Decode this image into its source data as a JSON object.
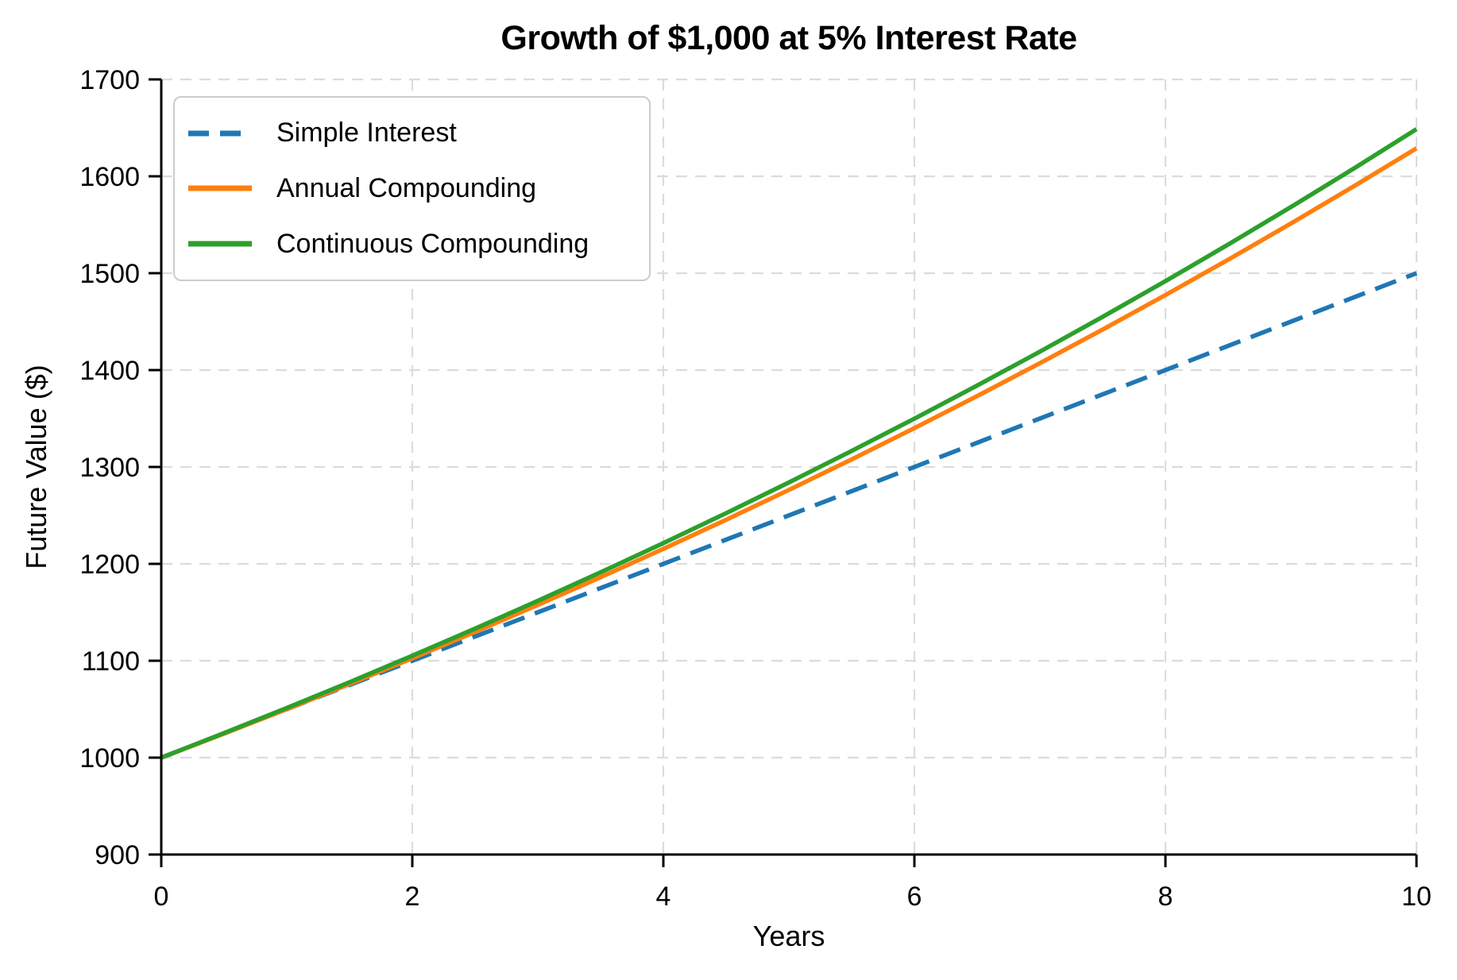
{
  "figure": {
    "background": "#ffffff"
  },
  "chart_data": {
    "type": "line",
    "title": "Growth of $1,000 at 5% Interest Rate",
    "xlabel": "Years",
    "ylabel": "Future Value ($)",
    "xlim": [
      0,
      10
    ],
    "ylim": [
      900,
      1700
    ],
    "x_ticks": [
      0,
      2,
      4,
      6,
      8,
      10
    ],
    "y_ticks": [
      900,
      1000,
      1100,
      1200,
      1300,
      1400,
      1500,
      1600,
      1700
    ],
    "grid": true,
    "legend_position": "upper-left",
    "x": [
      0,
      0.5,
      1,
      1.5,
      2,
      2.5,
      3,
      3.5,
      4,
      4.5,
      5,
      5.5,
      6,
      6.5,
      7,
      7.5,
      8,
      8.5,
      9,
      9.5,
      10
    ],
    "series": [
      {
        "name": "Simple Interest",
        "color": "#1f77b4",
        "style": "dashed",
        "values": [
          1000,
          1025,
          1050,
          1075,
          1100,
          1125,
          1150,
          1175,
          1200,
          1225,
          1250,
          1275,
          1300,
          1325,
          1350,
          1375,
          1400,
          1425,
          1450,
          1475,
          1500
        ]
      },
      {
        "name": "Annual Compounding",
        "color": "#ff7f0e",
        "style": "solid",
        "values": [
          1000,
          1024.7,
          1050.0,
          1075.93,
          1102.5,
          1129.73,
          1157.63,
          1186.21,
          1215.51,
          1245.52,
          1276.28,
          1307.8,
          1340.1,
          1373.19,
          1407.1,
          1441.85,
          1477.46,
          1513.94,
          1551.33,
          1589.64,
          1628.89
        ]
      },
      {
        "name": "Continuous Compounding",
        "color": "#2ca02c",
        "style": "solid",
        "values": [
          1000,
          1025.32,
          1051.27,
          1077.88,
          1105.17,
          1133.15,
          1161.83,
          1191.25,
          1221.4,
          1252.32,
          1284.03,
          1316.53,
          1349.86,
          1384.03,
          1419.07,
          1454.99,
          1491.82,
          1529.59,
          1568.31,
          1608.01,
          1648.72
        ]
      }
    ]
  },
  "style": {
    "grid_color": "#dcdcdc",
    "spine_color": "#000000",
    "text_color": "#000000",
    "legend_border_color": "#cccccc"
  }
}
